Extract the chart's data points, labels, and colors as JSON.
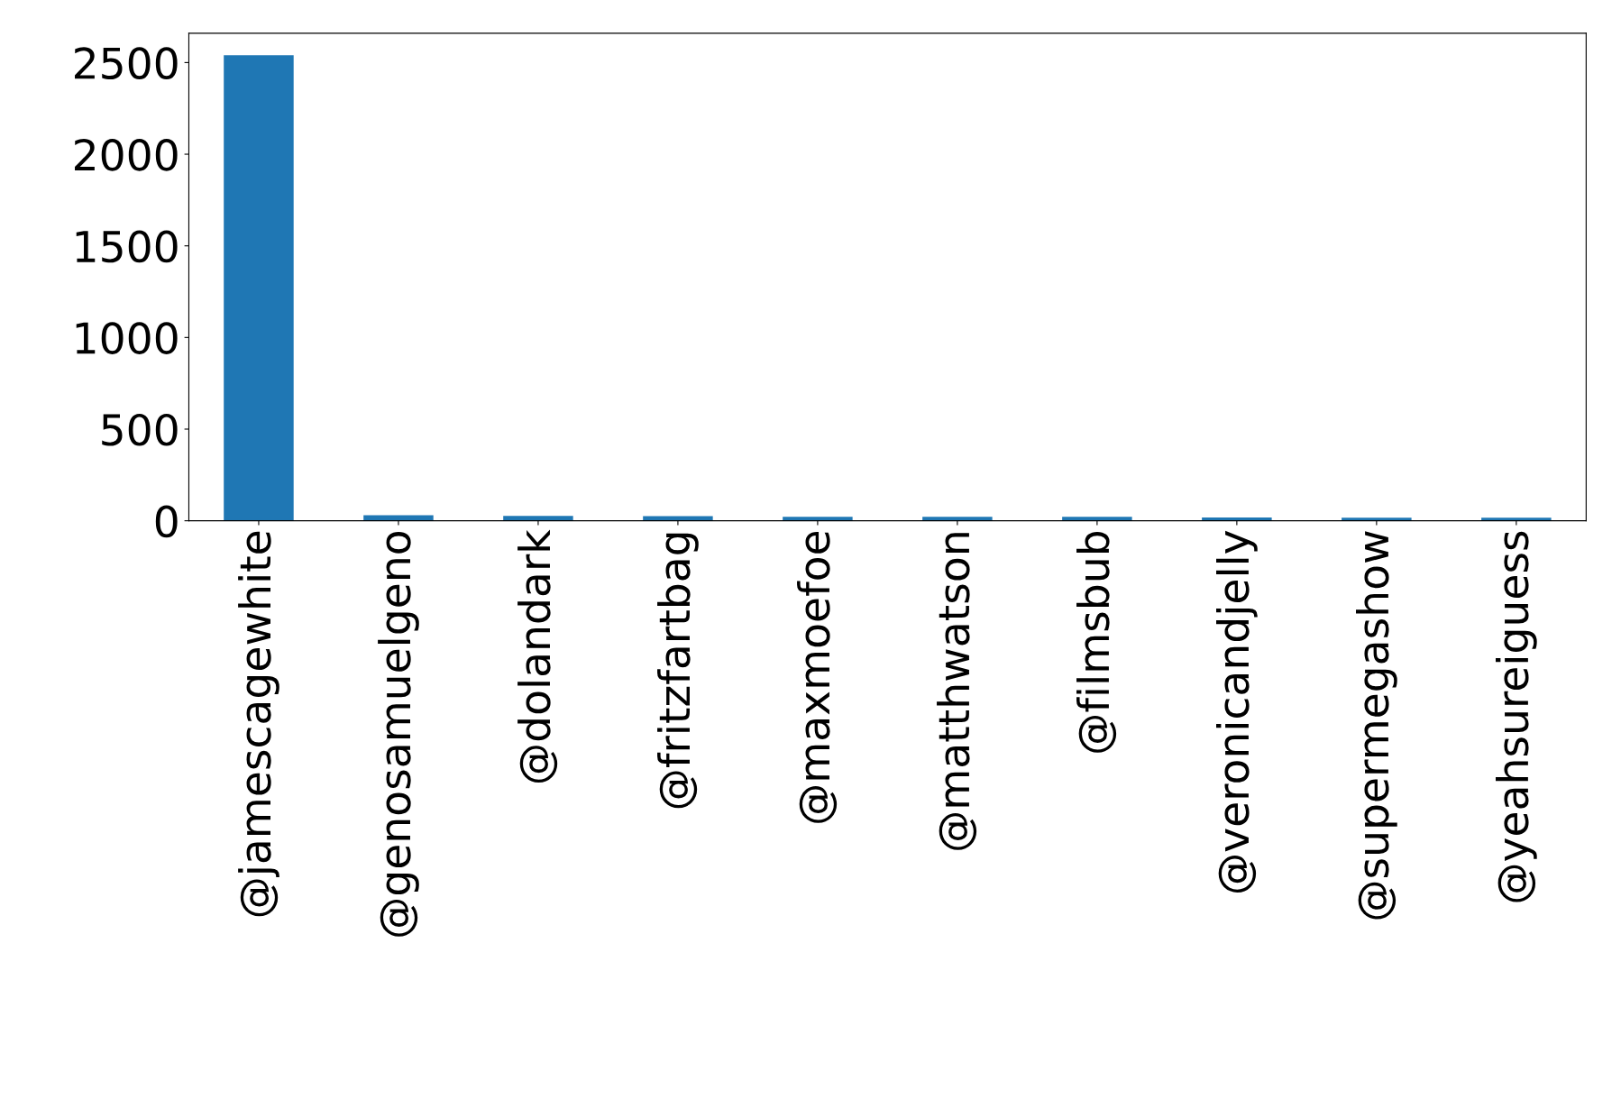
{
  "chart_data": {
    "type": "bar",
    "categories": [
      "@jamescagewhite",
      "@genosamuelgeno",
      "@dolandark",
      "@fritzfartbag",
      "@maxmoefoe",
      "@matthwatson",
      "@filmsbub",
      "@veronicandjelly",
      "@supermegashow",
      "@yeahsureiguess"
    ],
    "values": [
      2540,
      30,
      26,
      25,
      22,
      21,
      21,
      18,
      17,
      17
    ],
    "color": "#1f77b4",
    "ylim": [
      0,
      2660
    ],
    "yticks": [
      0,
      500,
      1000,
      1500,
      2000,
      2500
    ],
    "grid": false
  }
}
